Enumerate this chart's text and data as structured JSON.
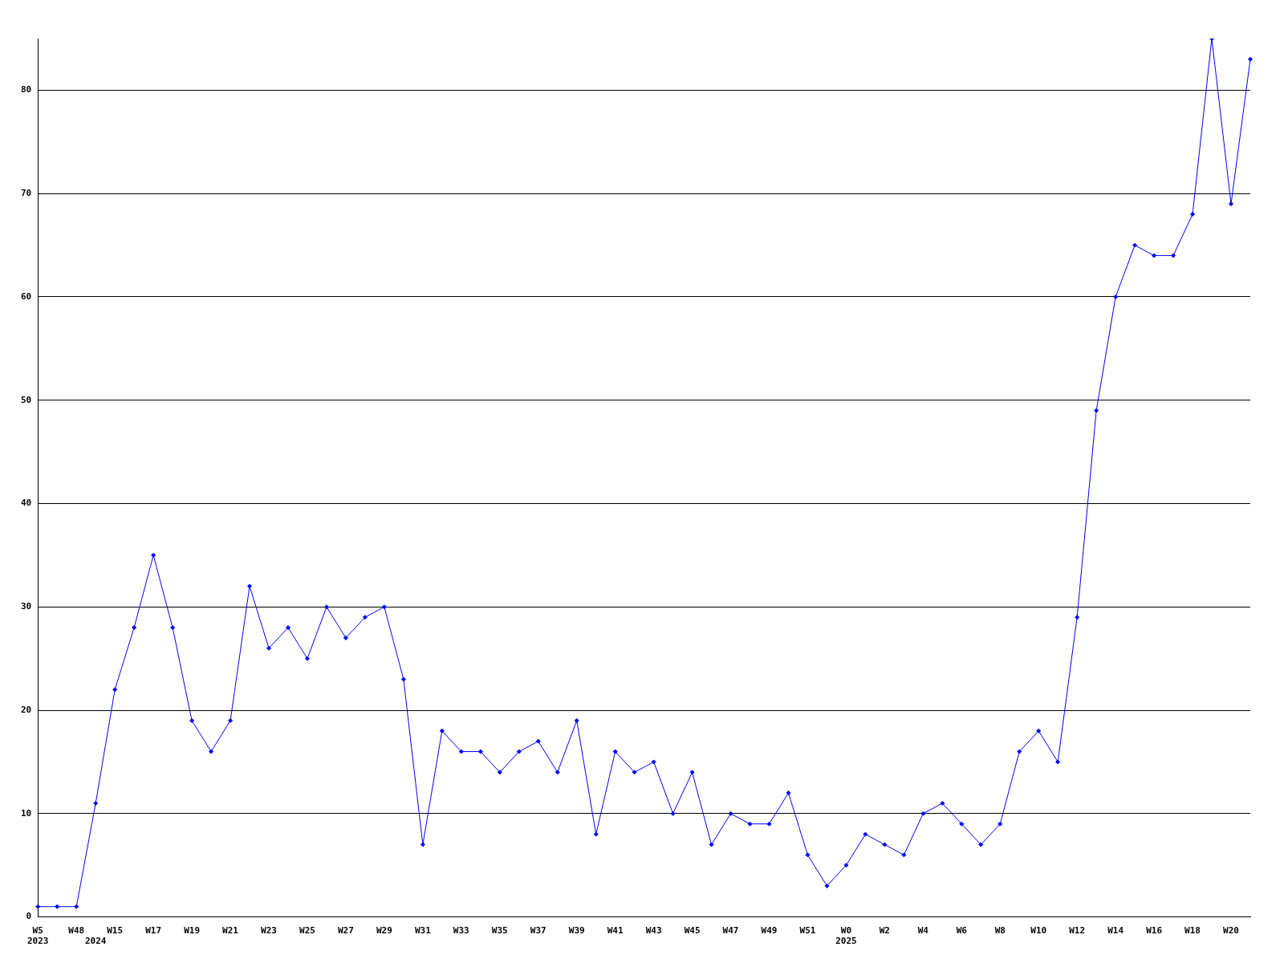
{
  "chart_data": {
    "type": "line",
    "categories": [
      "W5\n2023",
      null,
      "W48",
      "\n2024",
      "W15",
      null,
      "W17",
      null,
      "W19",
      null,
      "W21",
      null,
      "W23",
      null,
      "W25",
      null,
      "W27",
      null,
      "W29",
      null,
      "W31",
      null,
      "W33",
      null,
      "W35",
      null,
      "W37",
      null,
      "W39",
      null,
      "W41",
      null,
      "W43",
      null,
      "W45",
      null,
      "W47",
      null,
      "W49",
      null,
      "W51",
      null,
      "W0\n2025",
      null,
      "W2",
      null,
      "W4",
      null,
      "W6",
      null,
      "W8",
      null,
      "W10",
      null,
      "W12",
      null,
      "W14",
      null,
      "W16",
      null,
      "W18",
      null,
      "W20",
      null
    ],
    "series": [
      {
        "color": "#0000ff",
        "values": [
          1,
          1,
          1,
          11,
          22,
          28,
          35,
          28,
          19,
          16,
          19,
          32,
          26,
          28,
          25,
          30,
          27,
          29,
          30,
          23,
          7,
          18,
          16,
          16,
          14,
          16,
          17,
          14,
          19,
          8,
          16,
          14,
          15,
          10,
          14,
          7,
          10,
          9,
          9,
          12,
          6,
          3,
          5,
          8,
          7,
          6,
          10,
          11,
          9,
          7,
          9,
          16,
          18,
          15,
          29,
          49,
          60,
          65,
          64,
          64,
          68,
          85,
          69,
          83
        ]
      }
    ],
    "ylim": [
      0,
      85
    ],
    "yticks": [
      0,
      10,
      20,
      30,
      40,
      50,
      60,
      70,
      80
    ],
    "grid": "y",
    "legend": false,
    "marker": "diamond",
    "line_style": "solid"
  }
}
